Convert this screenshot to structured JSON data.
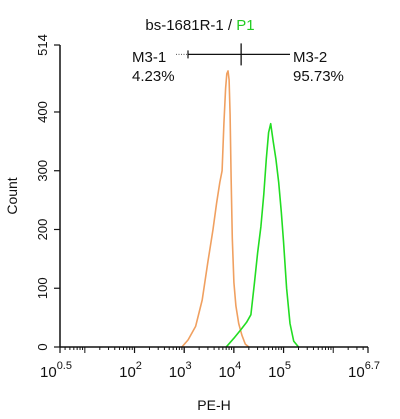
{
  "chart_data": {
    "type": "line",
    "title_prefix": "bs-1681R-1 / ",
    "title_gate": "P1",
    "xlabel": "PE-H",
    "ylabel": "Count",
    "x_scale": "log",
    "xlim": [
      3.1623,
      5011872
    ],
    "ylim": [
      0,
      514
    ],
    "x_ticks": [
      {
        "base": "10",
        "exp": "0.5",
        "value": 3.1623
      },
      {
        "base": "10",
        "exp": "2",
        "value": 100
      },
      {
        "base": "10",
        "exp": "3",
        "value": 1000
      },
      {
        "base": "10",
        "exp": "4",
        "value": 10000
      },
      {
        "base": "10",
        "exp": "5",
        "value": 100000
      },
      {
        "base": "10",
        "exp": "6.7",
        "value": 5011872
      }
    ],
    "y_ticks": [
      0,
      100,
      200,
      300,
      400,
      514
    ],
    "colors": {
      "control": "#f0a060",
      "sample": "#22dd22",
      "gate_text": "#22cc22",
      "axis": "#111111"
    },
    "gates": [
      {
        "name": "M3-1",
        "percent": "4.23%"
      },
      {
        "name": "M3-2",
        "percent": "95.73%"
      }
    ],
    "gate_divider_x": 14000,
    "gate_line_y": 498,
    "series": [
      {
        "id": "control",
        "x": [
          900,
          1200,
          1700,
          2300,
          3000,
          3800,
          4500,
          5200,
          5800,
          6300,
          6800,
          7200,
          7600,
          8000,
          8400,
          8800,
          9300,
          10000,
          11000,
          12500,
          14500,
          17000,
          20000
        ],
        "y": [
          0,
          12,
          35,
          80,
          145,
          200,
          245,
          280,
          300,
          380,
          440,
          465,
          470,
          455,
          395,
          290,
          185,
          110,
          70,
          40,
          20,
          5,
          0
        ]
      },
      {
        "id": "sample",
        "x": [
          7000,
          10000,
          14000,
          18000,
          22000,
          26000,
          30000,
          35000,
          40000,
          45000,
          50000,
          55000,
          62000,
          70000,
          80000,
          90000,
          100000,
          115000,
          135000,
          160000,
          200000
        ],
        "y": [
          0,
          15,
          30,
          42,
          55,
          110,
          160,
          205,
          260,
          320,
          365,
          380,
          350,
          320,
          280,
          230,
          180,
          100,
          40,
          10,
          0
        ]
      }
    ]
  }
}
